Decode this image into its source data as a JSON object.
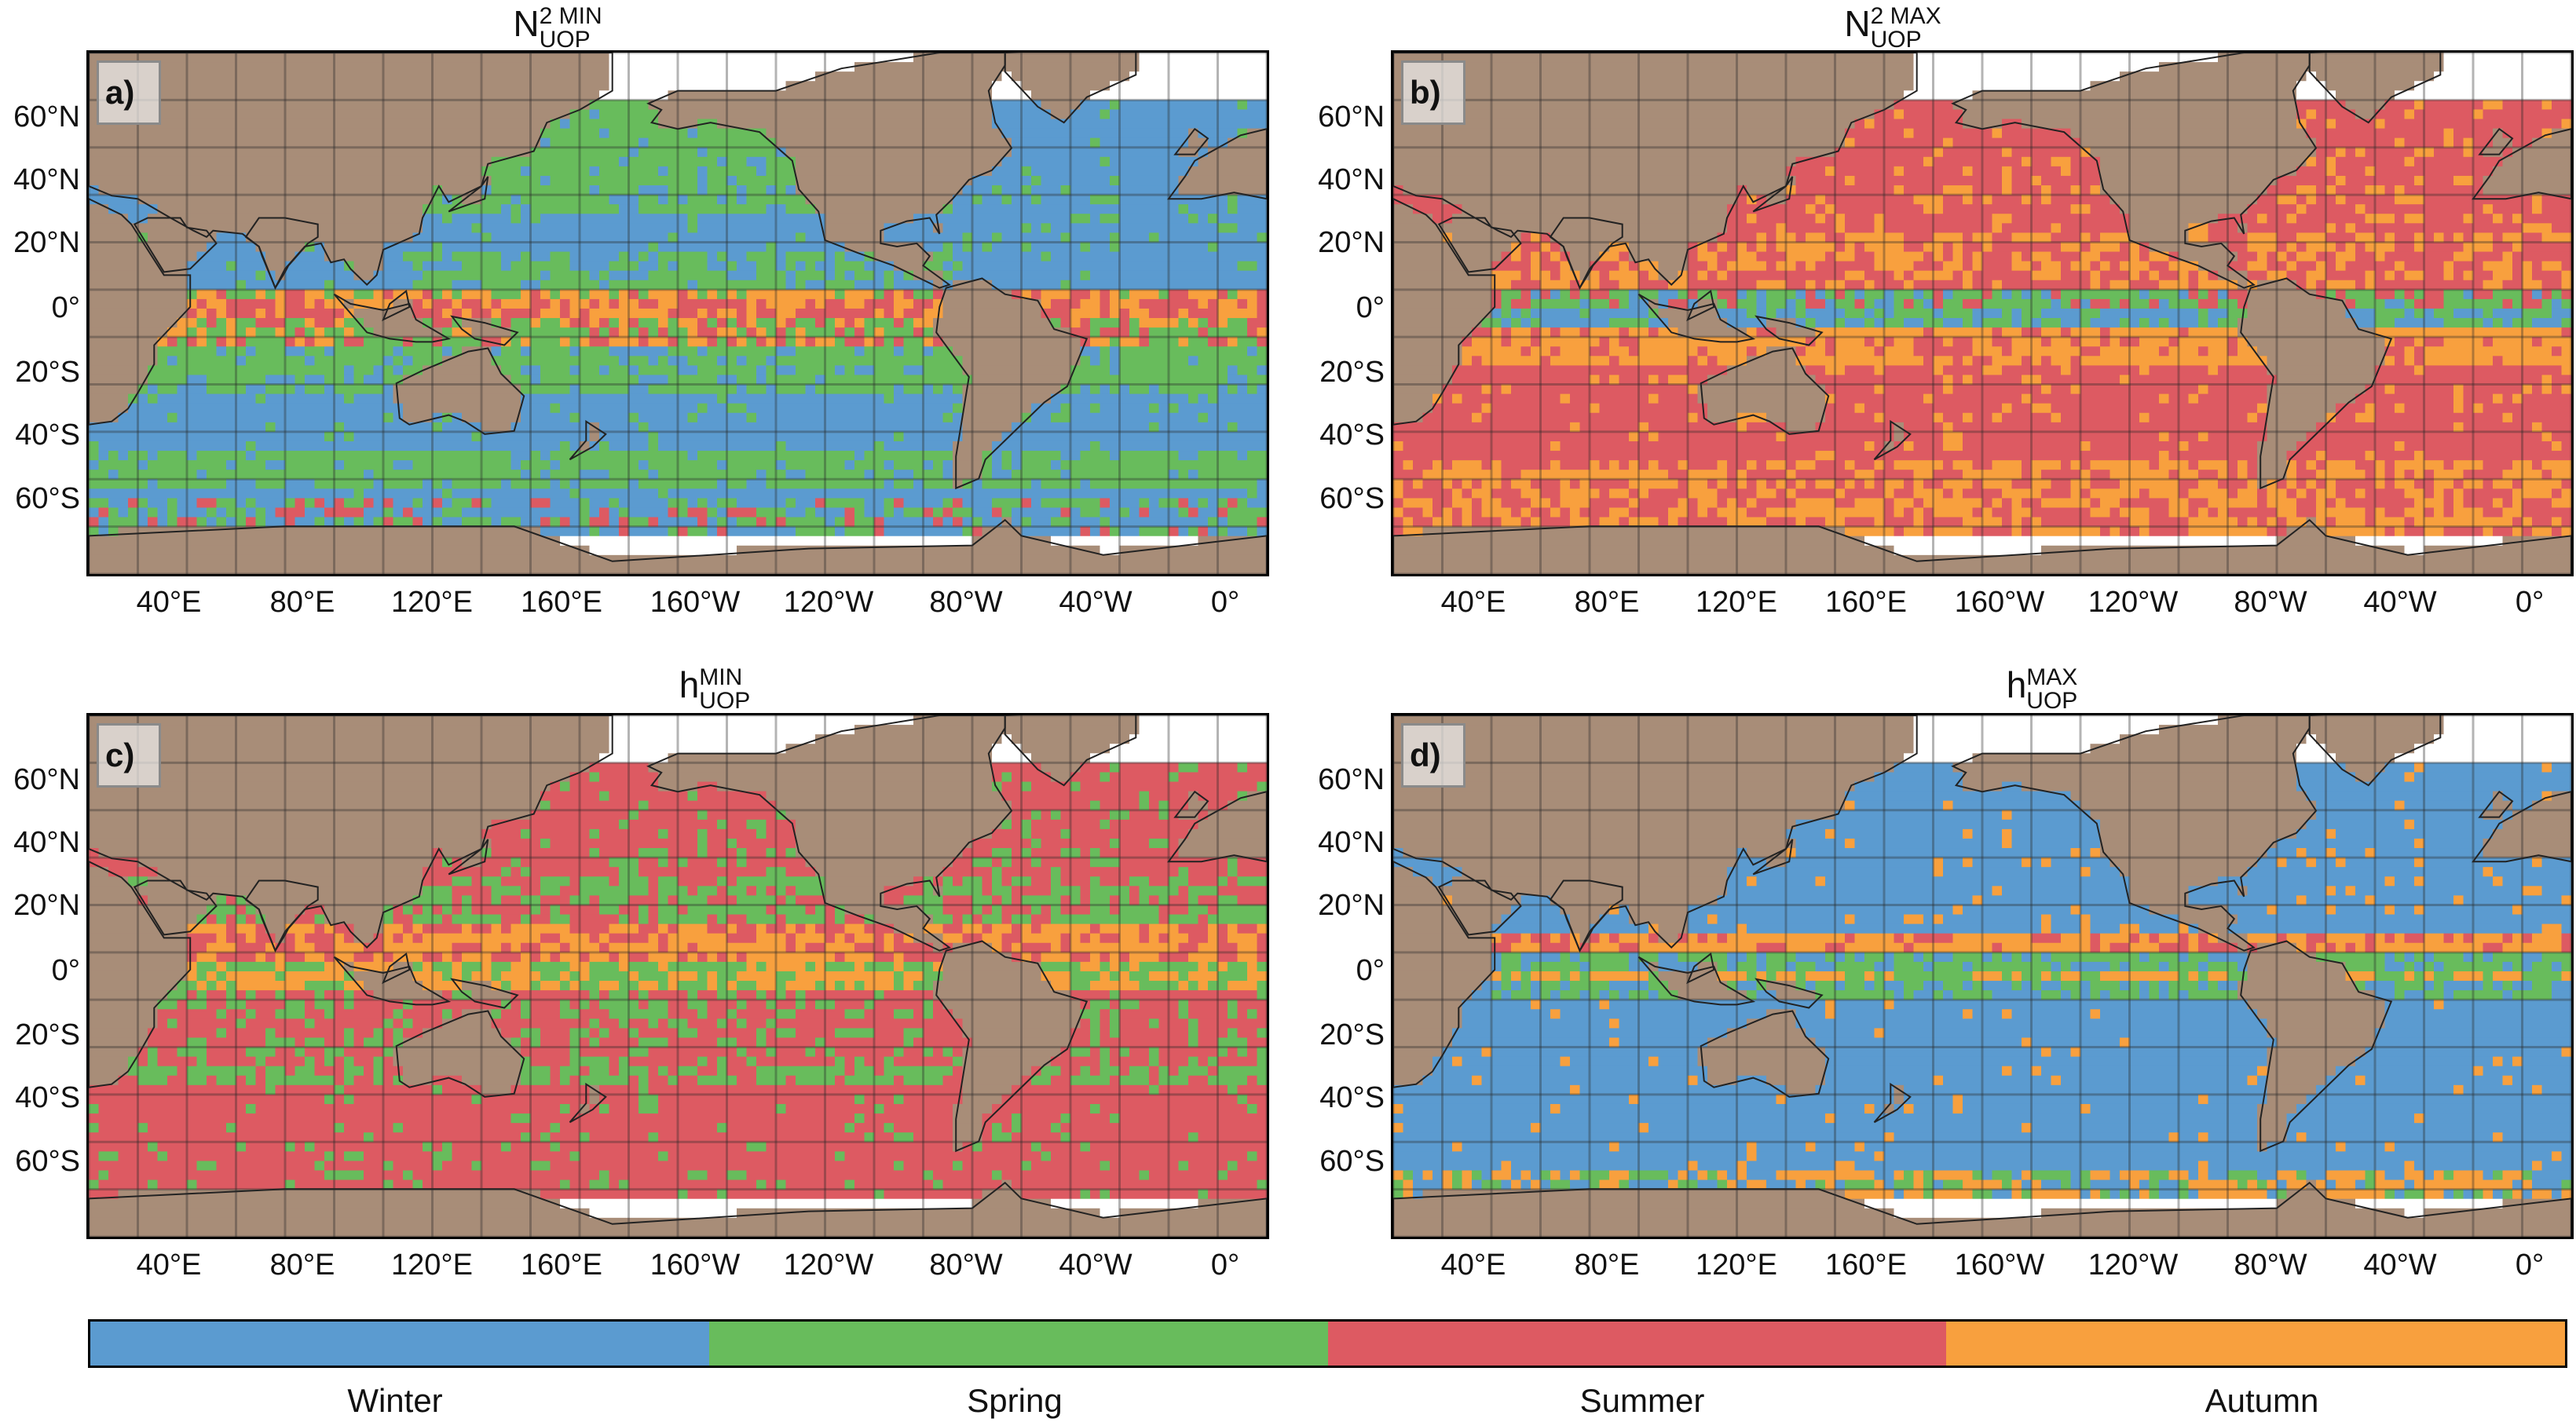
{
  "colors": {
    "winter": "#5b9bd0",
    "spring": "#68bc5c",
    "summer": "#dd5a62",
    "autumn": "#f8a03e",
    "land": "#a88d78",
    "ice": "#ffffff"
  },
  "panels": [
    {
      "label": "a)",
      "title": {
        "base": "N",
        "sup": "2 MIN",
        "sub": "UOP"
      },
      "pattern": "n2min"
    },
    {
      "label": "b)",
      "title": {
        "base": "N",
        "sup": "2 MAX",
        "sub": "UOP"
      },
      "pattern": "n2max"
    },
    {
      "label": "c)",
      "title": {
        "base": "h",
        "sup": "MIN",
        "sub": "UOP"
      },
      "pattern": "hmin"
    },
    {
      "label": "d)",
      "title": {
        "base": "h",
        "sup": "MAX",
        "sub": "UOP"
      },
      "pattern": "hmax"
    }
  ],
  "lat_ticks": [
    "60°N",
    "40°N",
    "20°N",
    "0°",
    "20°S",
    "40°S",
    "60°S"
  ],
  "lon_ticks": [
    "40°E",
    "80°E",
    "120°E",
    "160°E",
    "160°W",
    "120°W",
    "80°W",
    "40°W",
    "0°"
  ],
  "legend": {
    "items": [
      {
        "label": "Winter",
        "color": "#5b9bd0"
      },
      {
        "label": "Spring",
        "color": "#68bc5c"
      },
      {
        "label": "Summer",
        "color": "#dd5a62"
      },
      {
        "label": "Autumn",
        "color": "#f8a03e"
      }
    ]
  }
}
